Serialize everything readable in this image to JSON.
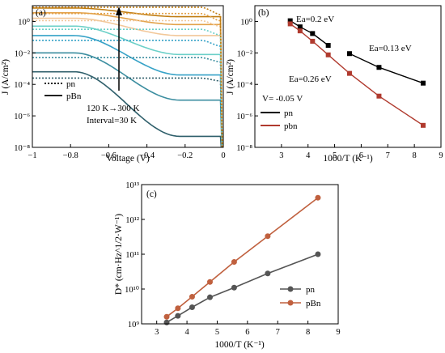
{
  "chart_data": [
    {
      "panel": "(a)",
      "type": "line",
      "xlabel": "Voltage (V)",
      "ylabel": "J (A/cm²)",
      "xlim": [
        -1,
        0
      ],
      "ylim_log10": [
        -8,
        1
      ],
      "x_ticks": [
        "-1",
        "-0.8",
        "-0.6",
        "-0.4",
        "-0.2",
        "0"
      ],
      "y_ticks": [
        "10⁻⁸",
        "10⁻⁶",
        "10⁻⁴",
        "10⁻²",
        "10⁰"
      ],
      "y_tick_values": [
        1e-08,
        1e-06,
        0.0001,
        0.01,
        1
      ],
      "legend": [
        {
          "label": "pn",
          "style": "dotted"
        },
        {
          "label": "pBn",
          "style": "solid"
        }
      ],
      "annotation": [
        "120 K→300 K",
        "Interval=30 K"
      ],
      "temperatures_K": [
        120,
        150,
        180,
        210,
        240,
        270,
        300
      ],
      "series_colors": [
        "#2f5f6b",
        "#3c8ea0",
        "#36a2c7",
        "#6cd0c8",
        "#f2c89a",
        "#e3a24a",
        "#c07d12"
      ],
      "pn_curves_log10J": [
        {
          "T": 120,
          "flat": -3.6,
          "drop_to": -3.8
        },
        {
          "T": 150,
          "flat": -2.3,
          "drop_to": -2.6
        },
        {
          "T": 180,
          "flat": -1.2,
          "drop_to": -1.6
        },
        {
          "T": 210,
          "flat": -0.5,
          "drop_to": -0.9
        },
        {
          "T": 240,
          "flat": 0.05,
          "drop_to": -0.35
        },
        {
          "T": 270,
          "flat": 0.5,
          "drop_to": 0.0
        },
        {
          "T": 300,
          "flat": 0.9,
          "drop_to": 0.4
        }
      ],
      "pbn_curves_log10J": [
        {
          "T": 120,
          "start": -3.2,
          "end": -7.3
        },
        {
          "T": 150,
          "start": -2.0,
          "end": -5.0
        },
        {
          "T": 180,
          "start": -0.9,
          "end": -3.4
        },
        {
          "T": 210,
          "start": -0.3,
          "end": -2.1
        },
        {
          "T": 240,
          "start": 0.2,
          "end": -0.9
        },
        {
          "T": 270,
          "start": 0.55,
          "end": -0.2
        },
        {
          "T": 300,
          "start": 0.85,
          "end": 0.3
        }
      ]
    },
    {
      "panel": "(b)",
      "type": "line",
      "xlabel": "1000/T (K⁻¹)",
      "ylabel": "J (A/cm²)",
      "xlim": [
        2,
        9
      ],
      "ylim_log10": [
        -8,
        1
      ],
      "x_ticks": [
        "3",
        "4",
        "5",
        "6",
        "7",
        "8",
        "9"
      ],
      "y_ticks": [
        "10⁻⁸",
        "10⁻⁶",
        "10⁻⁴",
        "10⁻²",
        "10⁰"
      ],
      "y_tick_values": [
        1e-08,
        1e-06,
        0.0001,
        0.01,
        1
      ],
      "series": [
        {
          "name": "pn",
          "color": "#000000",
          "marker": "square",
          "segments": [
            {
              "x": [
                3.33,
                3.7,
                4.17,
                4.76
              ],
              "y": [
                1.1,
                0.45,
                0.17,
                0.03
              ]
            },
            {
              "x": [
                5.56,
                6.67,
                8.33
              ],
              "y": [
                0.009,
                0.0012,
                0.00012
              ]
            }
          ]
        },
        {
          "name": "pbn",
          "color": "#b03a2e",
          "marker": "square",
          "segments": [
            {
              "x": [
                3.33,
                3.7,
                4.17,
                4.76,
                5.56,
                6.67,
                8.33
              ],
              "y": [
                0.7,
                0.25,
                0.055,
                0.0075,
                0.0005,
                1.8e-05,
                2.5e-07
              ]
            }
          ]
        }
      ],
      "annotations": [
        {
          "text": "Ea=0.2 eV",
          "color": "#000000"
        },
        {
          "text": "Ea=0.13 eV",
          "color": "#000000"
        },
        {
          "text": "Ea=0.26 eV",
          "color": "#b03a2e"
        },
        {
          "text": "V= -0.05 V",
          "color": "#000000"
        }
      ]
    },
    {
      "panel": "(c)",
      "type": "line",
      "xlabel": "1000/T (K⁻¹)",
      "ylabel": "D* (cm·Hz^1/2·W⁻¹)",
      "xlim": [
        2.5,
        9
      ],
      "ylim_log10": [
        9,
        13
      ],
      "x_ticks": [
        "3",
        "4",
        "5",
        "6",
        "7",
        "8",
        "9"
      ],
      "y_ticks": [
        "10⁹",
        "10¹⁰",
        "10¹¹",
        "10¹²",
        "10¹³"
      ],
      "y_tick_values": [
        1000000000.0,
        10000000000.0,
        100000000000.0,
        1000000000000.0,
        10000000000000.0
      ],
      "series": [
        {
          "name": "pn",
          "color": "#555555",
          "marker": "circle",
          "x": [
            3.33,
            3.7,
            4.17,
            4.76,
            5.56,
            6.67,
            8.33
          ],
          "y": [
            1100000000.0,
            1700000000.0,
            3000000000.0,
            5800000000.0,
            11000000000.0,
            28000000000.0,
            100000000000.0
          ]
        },
        {
          "name": "pBn",
          "color": "#c0603e",
          "marker": "circle",
          "x": [
            3.33,
            3.7,
            4.17,
            4.76,
            5.56,
            6.67,
            8.33
          ],
          "y": [
            1600000000.0,
            2800000000.0,
            6000000000.0,
            16000000000.0,
            60000000000.0,
            330000000000.0,
            4200000000000.0
          ]
        }
      ]
    }
  ]
}
